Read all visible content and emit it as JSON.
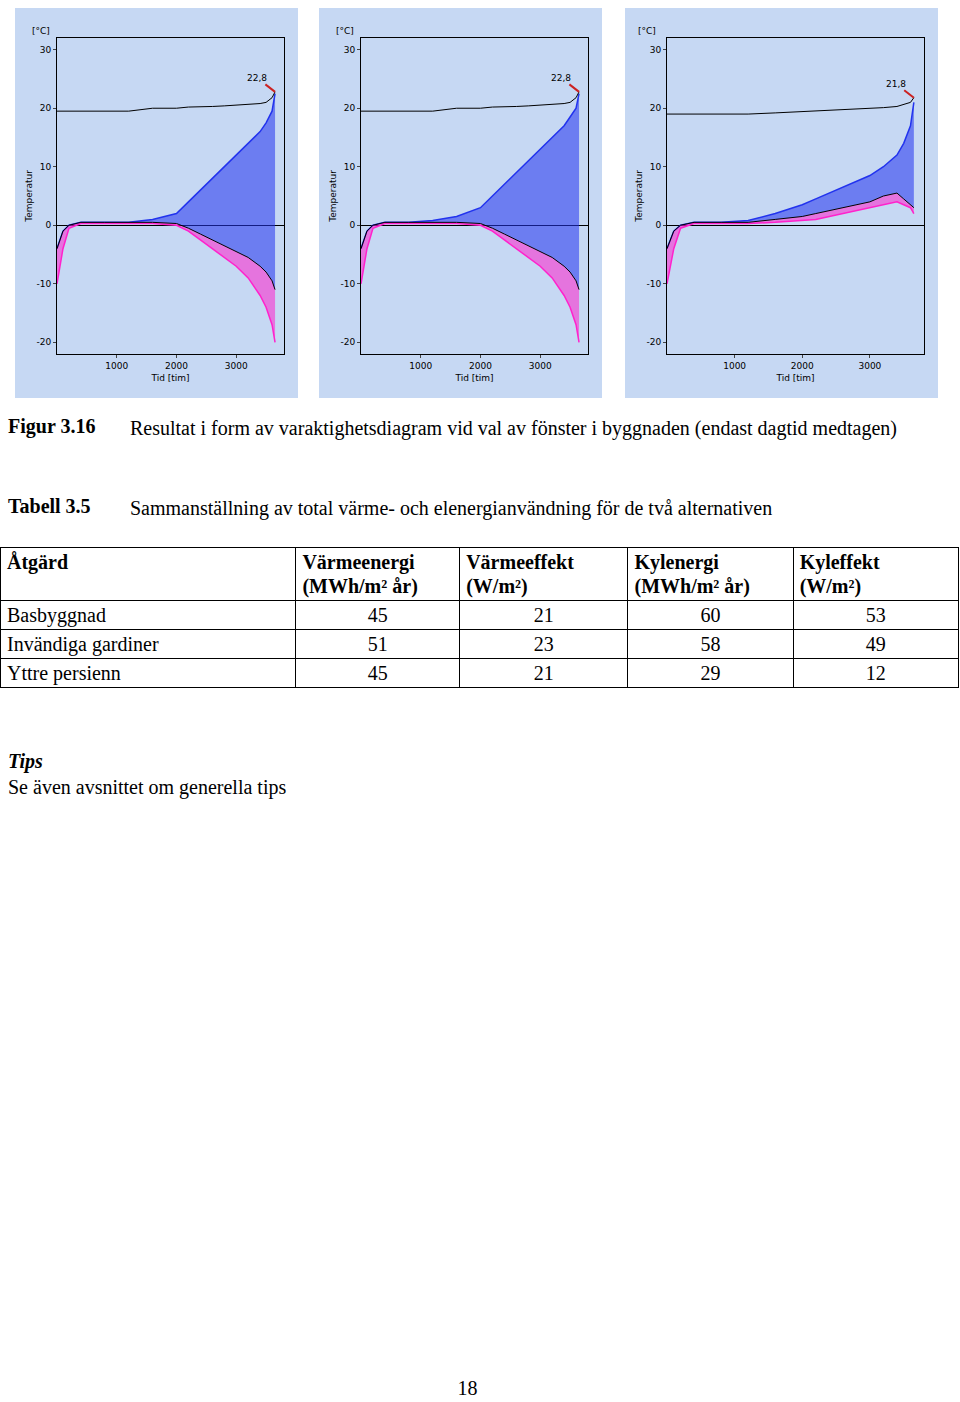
{
  "chart_data": [
    {
      "type": "area",
      "x_label": "Tid [tim]",
      "y_label": "Temperatur",
      "y_unit": "[°C]",
      "xlim": [
        0,
        3800
      ],
      "xticks": [
        1000,
        2000,
        3000
      ],
      "ylim": [
        -22,
        32
      ],
      "yticks": [
        -20,
        -10,
        0,
        10,
        20,
        30
      ],
      "end_label": {
        "value": 22.8,
        "label": "22,8"
      },
      "x": [
        0,
        100,
        200,
        400,
        800,
        1200,
        1600,
        2000,
        2200,
        2400,
        2600,
        2800,
        3000,
        3200,
        3400,
        3500,
        3600,
        3650
      ],
      "series": [
        {
          "type": "line",
          "color": "#000000",
          "values": [
            19.5,
            19.5,
            19.5,
            19.5,
            19.5,
            19.5,
            20,
            20,
            20.2,
            20.2,
            20.3,
            20.4,
            20.5,
            20.6,
            20.8,
            21,
            21.8,
            22.8
          ]
        },
        {
          "type": "line",
          "color": "#000000",
          "values": [
            -4,
            -1,
            0,
            0.5,
            0.5,
            0.5,
            0.5,
            0.3,
            -0.5,
            -1.5,
            -2.5,
            -3.5,
            -4.5,
            -5.5,
            -7,
            -8,
            -9.5,
            -11
          ]
        },
        {
          "type": "area",
          "color": "#2233ee",
          "values": [
            -4,
            -1,
            0,
            0.5,
            0.5,
            0.5,
            1,
            2,
            4,
            6,
            8,
            10,
            12,
            14,
            16,
            17.5,
            19.5,
            22.5
          ]
        },
        {
          "type": "area",
          "color": "#ff22cc",
          "values": [
            -10,
            -4,
            -0.5,
            0.3,
            0.3,
            0.3,
            0.3,
            0,
            -1,
            -2.5,
            -4,
            -5.5,
            -7,
            -9,
            -12,
            -14,
            -17,
            -20
          ]
        }
      ]
    },
    {
      "type": "area",
      "x_label": "Tid [tim]",
      "y_label": "Temperatur",
      "y_unit": "[°C]",
      "xlim": [
        0,
        3800
      ],
      "xticks": [
        1000,
        2000,
        3000
      ],
      "ylim": [
        -22,
        32
      ],
      "yticks": [
        -20,
        -10,
        0,
        10,
        20,
        30
      ],
      "end_label": {
        "value": 22.8,
        "label": "22,8"
      },
      "x": [
        0,
        100,
        200,
        400,
        800,
        1200,
        1600,
        2000,
        2200,
        2400,
        2600,
        2800,
        3000,
        3200,
        3400,
        3500,
        3600,
        3650
      ],
      "series": [
        {
          "type": "line",
          "color": "#000000",
          "values": [
            19.5,
            19.5,
            19.5,
            19.5,
            19.5,
            19.5,
            20,
            20,
            20.2,
            20.2,
            20.3,
            20.4,
            20.5,
            20.6,
            20.8,
            21,
            21.8,
            22.8
          ]
        },
        {
          "type": "line",
          "color": "#000000",
          "values": [
            -4,
            -1,
            0,
            0.5,
            0.5,
            0.5,
            0.5,
            0.3,
            -0.5,
            -1.5,
            -2.5,
            -3.5,
            -4.5,
            -5.5,
            -7,
            -8,
            -9.5,
            -11
          ]
        },
        {
          "type": "area",
          "color": "#2233ee",
          "values": [
            -4,
            -1,
            0,
            0.5,
            0.5,
            0.8,
            1.5,
            3,
            5,
            7,
            9,
            11,
            13,
            15,
            17,
            18.5,
            20,
            22.5
          ]
        },
        {
          "type": "area",
          "color": "#ff22cc",
          "values": [
            -10,
            -4,
            -0.5,
            0.3,
            0.3,
            0.3,
            0.3,
            0,
            -1,
            -2.5,
            -4,
            -5.5,
            -7,
            -9,
            -12,
            -14,
            -17,
            -20
          ]
        }
      ]
    },
    {
      "type": "area",
      "x_label": "Tid [tim]",
      "y_label": "Temperatur",
      "y_unit": "[°C]",
      "xlim": [
        0,
        3800
      ],
      "xticks": [
        1000,
        2000,
        3000
      ],
      "ylim": [
        -22,
        32
      ],
      "yticks": [
        -20,
        -10,
        0,
        10,
        20,
        30
      ],
      "end_label": {
        "value": 21.8,
        "label": "21,8"
      },
      "x": [
        0,
        100,
        200,
        400,
        800,
        1200,
        1600,
        2000,
        2200,
        2400,
        2600,
        2800,
        3000,
        3200,
        3400,
        3500,
        3600,
        3650
      ],
      "series": [
        {
          "type": "line",
          "color": "#000000",
          "values": [
            19,
            19,
            19,
            19,
            19,
            19,
            19.2,
            19.4,
            19.5,
            19.6,
            19.7,
            19.8,
            20,
            20.1,
            20.3,
            20.6,
            21,
            21.8
          ]
        },
        {
          "type": "line",
          "color": "#000000",
          "values": [
            -4,
            -1,
            0,
            0.5,
            0.5,
            0.5,
            1,
            1.5,
            2,
            2.5,
            3,
            3.5,
            4,
            5,
            5.5,
            4.5,
            3.5,
            3
          ]
        },
        {
          "type": "area",
          "color": "#2233ee",
          "values": [
            -4,
            -1,
            0,
            0.5,
            0.5,
            0.8,
            2,
            3.5,
            4.5,
            5.5,
            6.5,
            7.5,
            8.5,
            10,
            12,
            14,
            17,
            21
          ]
        },
        {
          "type": "area",
          "color": "#ff22cc",
          "values": [
            -10,
            -4,
            -0.5,
            0.3,
            0.3,
            0.3,
            0.5,
            0.8,
            1,
            1.5,
            2,
            2.5,
            3,
            3.5,
            4,
            3.5,
            3,
            2
          ]
        }
      ]
    }
  ],
  "figure": {
    "label": "Figur 3.16",
    "caption": "Resultat i form av varaktighetsdiagram vid val av fönster i byggnaden (endast dagtid medtagen)"
  },
  "table": {
    "label": "Tabell 3.5",
    "caption": "Sammanställning av total värme- och elenergianvändning för de två alternativen",
    "header": [
      "Åtgärd",
      "Värmeenergi (MWh/m² år)",
      "Värmeeffekt (W/m²)",
      "Kylenergi (MWh/m² år)",
      "Kyleffekt (W/m²)"
    ],
    "rows": [
      [
        "Basbyggnad",
        45,
        21,
        60,
        53
      ],
      [
        "Invändiga gardiner",
        51,
        23,
        58,
        49
      ],
      [
        "Yttre persienn",
        45,
        21,
        29,
        12
      ]
    ]
  },
  "tips": {
    "title": "Tips",
    "text": "Se även avsnittet om generella tips"
  },
  "page_number": "18"
}
